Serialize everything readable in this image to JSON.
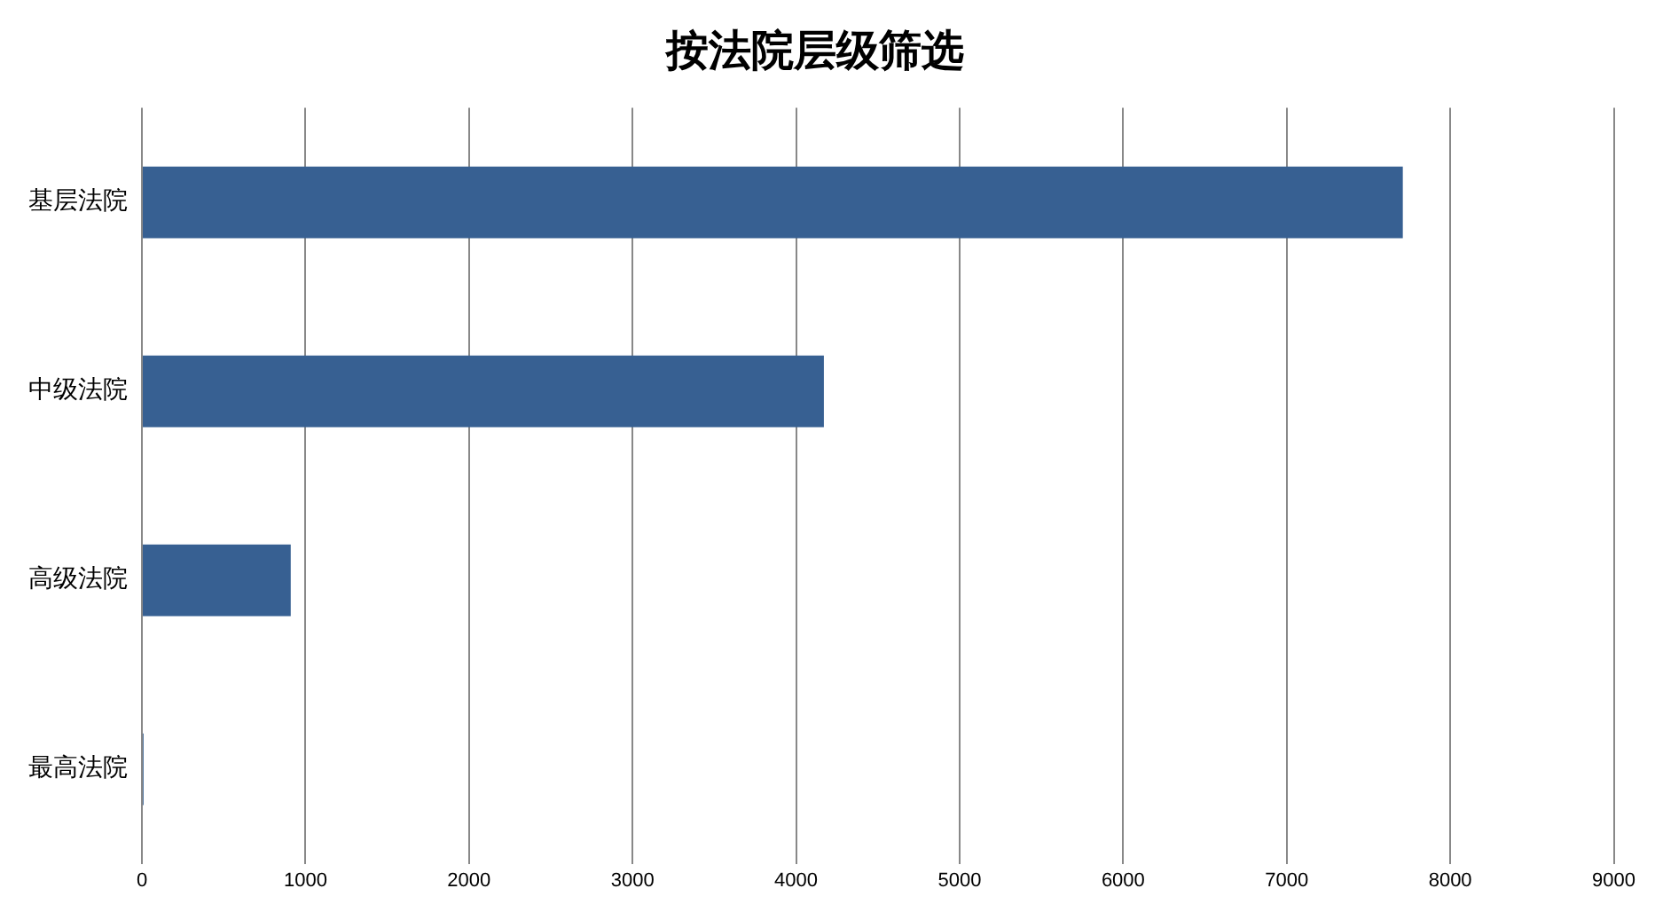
{
  "chart_data": {
    "type": "bar",
    "title": "按法院层级筛选",
    "orientation": "horizontal",
    "categories": [
      "基层法院",
      "中级法院",
      "高级法院",
      "最高法院"
    ],
    "values": [
      7710,
      4170,
      910,
      10
    ],
    "color": "#376092",
    "xlim": [
      0,
      9000
    ],
    "xticks": [
      0,
      1000,
      2000,
      3000,
      4000,
      5000,
      6000,
      7000,
      8000,
      9000
    ],
    "grid": "x"
  }
}
